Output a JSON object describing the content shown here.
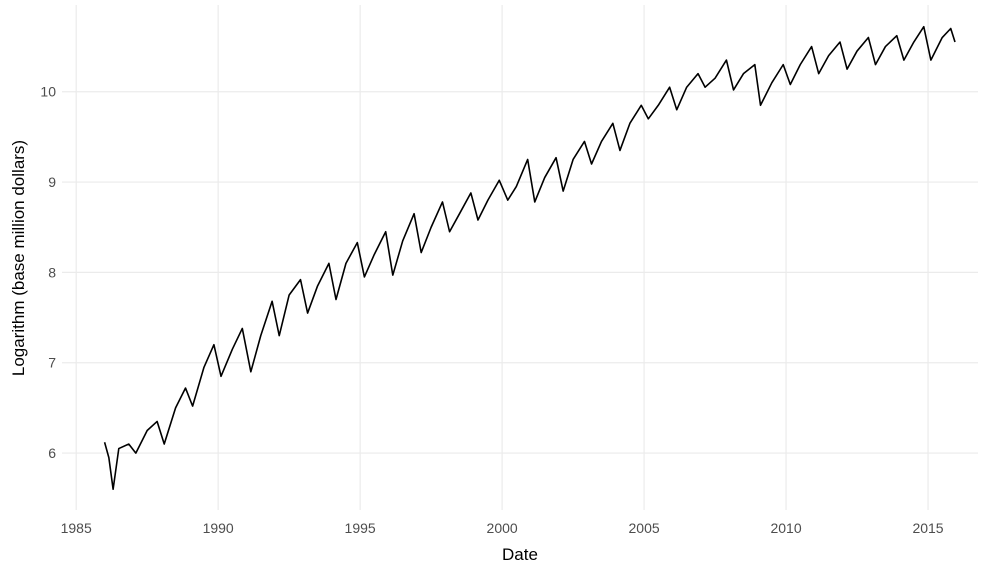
{
  "chart_data": {
    "type": "line",
    "x_label": "Date",
    "y_label": "Logarithm (base million dollars)",
    "x": [
      1986.0,
      1986.15,
      1986.3,
      1986.5,
      1986.85,
      1987.1,
      1987.5,
      1987.85,
      1988.1,
      1988.5,
      1988.85,
      1989.1,
      1989.5,
      1989.85,
      1990.1,
      1990.5,
      1990.85,
      1991.15,
      1991.5,
      1991.9,
      1992.15,
      1992.5,
      1992.9,
      1993.15,
      1993.5,
      1993.9,
      1994.15,
      1994.5,
      1994.9,
      1995.15,
      1995.5,
      1995.9,
      1996.15,
      1996.5,
      1996.9,
      1997.15,
      1997.5,
      1997.9,
      1998.15,
      1998.5,
      1998.9,
      1999.15,
      1999.5,
      1999.9,
      2000.2,
      2000.5,
      2000.9,
      2001.15,
      2001.5,
      2001.9,
      2002.15,
      2002.5,
      2002.9,
      2003.15,
      2003.5,
      2003.9,
      2004.15,
      2004.5,
      2004.9,
      2005.15,
      2005.5,
      2005.9,
      2006.15,
      2006.5,
      2006.9,
      2007.15,
      2007.5,
      2007.9,
      2008.15,
      2008.5,
      2008.9,
      2009.1,
      2009.5,
      2009.9,
      2010.15,
      2010.5,
      2010.9,
      2011.15,
      2011.5,
      2011.9,
      2012.15,
      2012.5,
      2012.9,
      2013.15,
      2013.5,
      2013.9,
      2014.15,
      2014.5,
      2014.85,
      2015.1,
      2015.5,
      2015.8,
      2015.95
    ],
    "series": [
      {
        "color": "#000000",
        "values": [
          6.12,
          5.95,
          5.6,
          6.05,
          6.1,
          6.0,
          6.25,
          6.35,
          6.1,
          6.5,
          6.72,
          6.52,
          6.95,
          7.2,
          6.85,
          7.15,
          7.38,
          6.9,
          7.3,
          7.68,
          7.3,
          7.75,
          7.92,
          7.55,
          7.85,
          8.1,
          7.7,
          8.1,
          8.33,
          7.95,
          8.2,
          8.45,
          7.97,
          8.35,
          8.65,
          8.22,
          8.5,
          8.78,
          8.45,
          8.65,
          8.88,
          8.58,
          8.8,
          9.02,
          8.8,
          8.95,
          9.25,
          8.78,
          9.05,
          9.27,
          8.9,
          9.25,
          9.45,
          9.2,
          9.45,
          9.65,
          9.35,
          9.65,
          9.85,
          9.7,
          9.85,
          10.05,
          9.8,
          10.05,
          10.2,
          10.05,
          10.15,
          10.35,
          10.02,
          10.2,
          10.3,
          9.85,
          10.1,
          10.3,
          10.08,
          10.3,
          10.5,
          10.2,
          10.4,
          10.55,
          10.25,
          10.45,
          10.6,
          10.3,
          10.5,
          10.62,
          10.35,
          10.55,
          10.72,
          10.35,
          10.6,
          10.7,
          10.55
        ]
      }
    ],
    "xlim": [
      1984.5,
      2016.76
    ],
    "ylim": [
      5.37,
      10.96
    ],
    "xticks": [
      1985,
      1990,
      1995,
      2000,
      2005,
      2010,
      2015
    ],
    "yticks": [
      6,
      7,
      8,
      9,
      10
    ],
    "grid": true
  }
}
